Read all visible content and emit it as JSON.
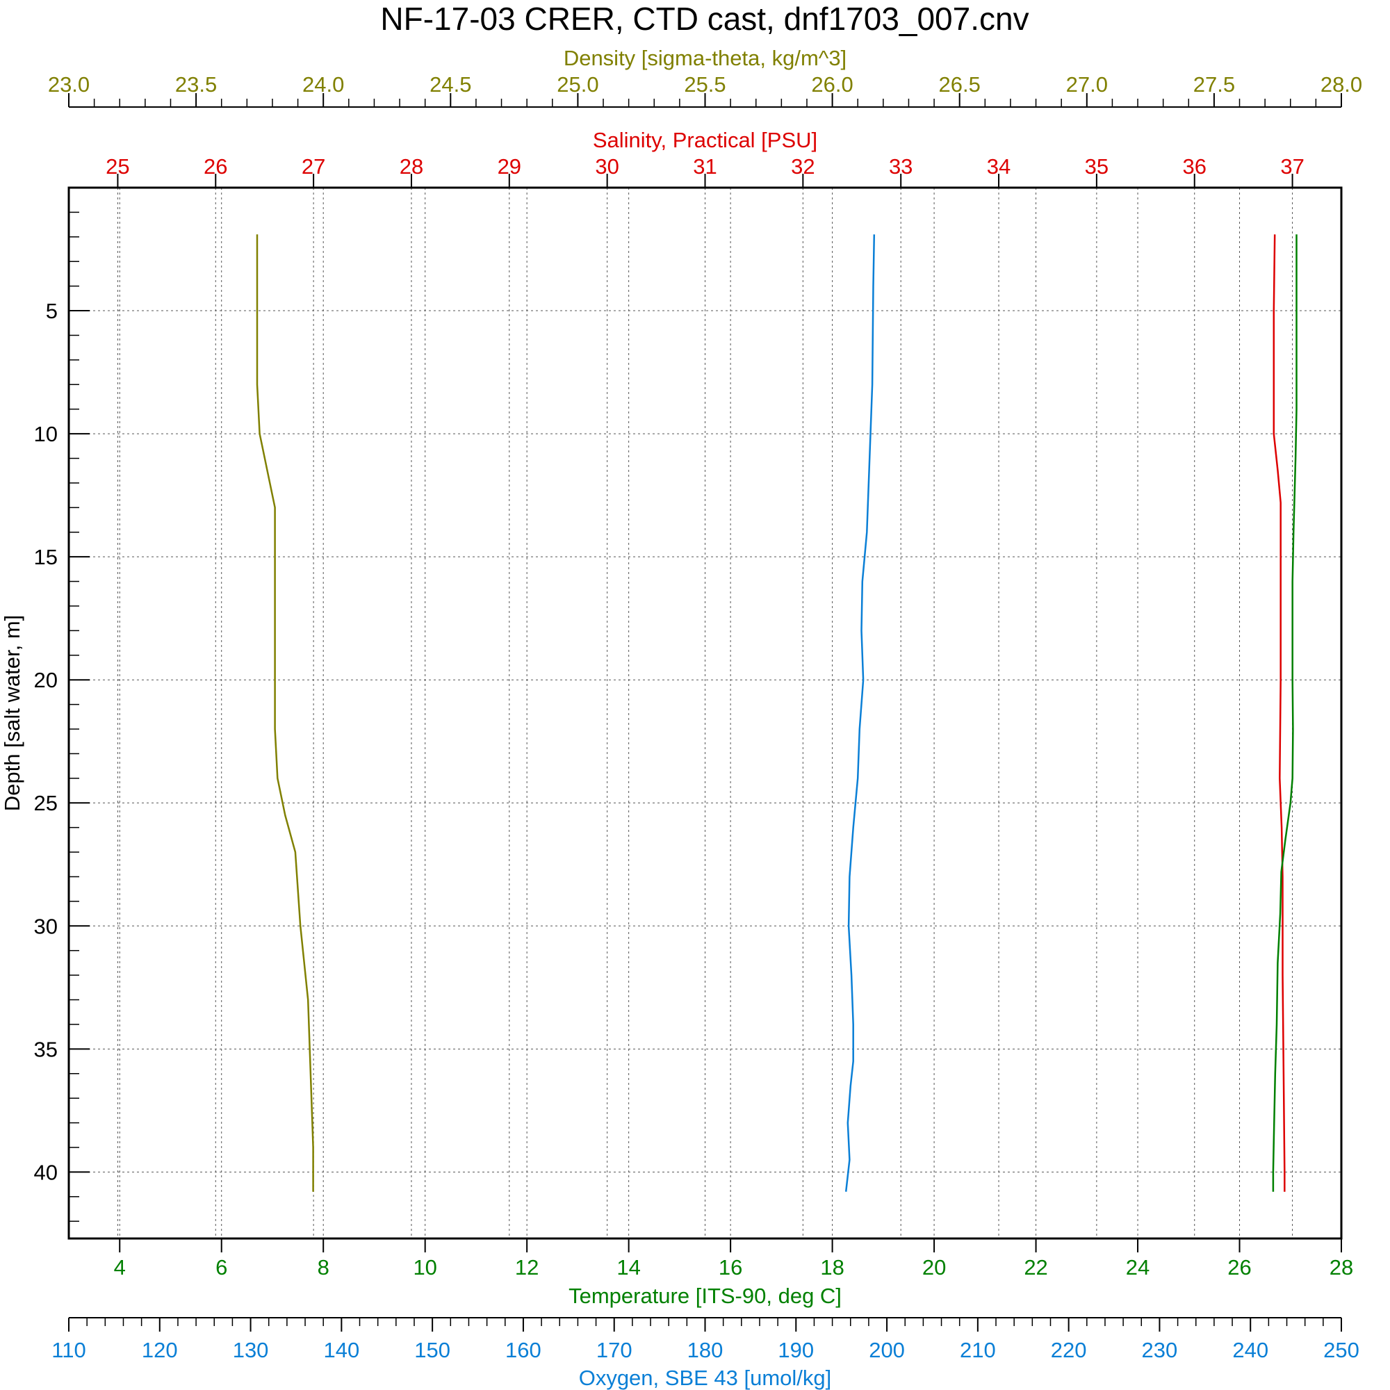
{
  "chart_data": {
    "type": "line",
    "title": "NF-17-03 CRER, CTD cast, dnf1703_007.cnv",
    "grid": true,
    "legend": "none",
    "y_axis": {
      "label": "Depth [salt water, m]",
      "range": [
        42.7,
        0.0
      ],
      "ticks": [
        5,
        10,
        15,
        20,
        25,
        30,
        35,
        40
      ],
      "tick_labels": [
        "5",
        "10",
        "15",
        "20",
        "25",
        "30",
        "35",
        "40"
      ],
      "inverted": true
    },
    "x_axes": [
      {
        "id": "density",
        "label": "Density [sigma-theta, kg/m^3]",
        "color": "#808000",
        "position": "top",
        "range": [
          23.0,
          28.0
        ],
        "ticks": [
          23.0,
          23.5,
          24.0,
          24.5,
          25.0,
          25.5,
          26.0,
          26.5,
          27.0,
          27.5,
          28.0
        ],
        "tick_labels": [
          "23.0",
          "23.5",
          "24.0",
          "24.5",
          "25.0",
          "25.5",
          "26.0",
          "26.5",
          "27.0",
          "27.5",
          "28.0"
        ],
        "minor_step": 0.1
      },
      {
        "id": "salinity",
        "label": "Salinity, Practical [PSU]",
        "color": "#dd0000",
        "position": "top",
        "range": [
          24.5,
          37.5
        ],
        "ticks": [
          25,
          26,
          27,
          28,
          29,
          30,
          31,
          32,
          33,
          34,
          35,
          36,
          37
        ],
        "tick_labels": [
          "25",
          "26",
          "27",
          "28",
          "29",
          "30",
          "31",
          "32",
          "33",
          "34",
          "35",
          "36",
          "37"
        ],
        "minor_step": 0
      },
      {
        "id": "temperature",
        "label": "Temperature [ITS-90, deg C]",
        "color": "#008000",
        "position": "bottom",
        "range": [
          3.0,
          28.0
        ],
        "ticks": [
          4,
          6,
          8,
          10,
          12,
          14,
          16,
          18,
          20,
          22,
          24,
          26,
          28
        ],
        "tick_labels": [
          "4",
          "6",
          "8",
          "10",
          "12",
          "14",
          "16",
          "18",
          "20",
          "22",
          "24",
          "26",
          "28"
        ],
        "minor_step": 0
      },
      {
        "id": "oxygen",
        "label": "Oxygen, SBE 43 [umol/kg]",
        "color": "#0a7fd6",
        "position": "bottom",
        "range": [
          110,
          250
        ],
        "ticks": [
          110,
          120,
          130,
          140,
          150,
          160,
          170,
          180,
          190,
          200,
          210,
          220,
          230,
          240,
          250
        ],
        "tick_labels": [
          "110",
          "120",
          "130",
          "140",
          "150",
          "160",
          "170",
          "180",
          "190",
          "200",
          "210",
          "220",
          "230",
          "240",
          "250"
        ],
        "minor_step": 2
      }
    ],
    "series": [
      {
        "axis": "density",
        "color": "#808000",
        "points": [
          [
            23.74,
            1.9
          ],
          [
            23.74,
            5
          ],
          [
            23.74,
            8
          ],
          [
            23.75,
            10
          ],
          [
            23.78,
            11.5
          ],
          [
            23.81,
            13
          ],
          [
            23.81,
            15
          ],
          [
            23.81,
            18
          ],
          [
            23.81,
            22
          ],
          [
            23.82,
            24
          ],
          [
            23.85,
            25.5
          ],
          [
            23.89,
            27
          ],
          [
            23.91,
            30
          ],
          [
            23.94,
            33
          ],
          [
            23.95,
            36
          ],
          [
            23.96,
            39
          ],
          [
            23.96,
            40
          ],
          [
            23.96,
            40.8
          ]
        ]
      },
      {
        "axis": "salinity",
        "color": "#dd0000",
        "points": [
          [
            36.82,
            1.9
          ],
          [
            36.81,
            5
          ],
          [
            36.81,
            8
          ],
          [
            36.81,
            10
          ],
          [
            36.85,
            11.5
          ],
          [
            36.88,
            12.8
          ],
          [
            36.88,
            15
          ],
          [
            36.88,
            20
          ],
          [
            36.87,
            24
          ],
          [
            36.89,
            26
          ],
          [
            36.9,
            28
          ],
          [
            36.9,
            32
          ],
          [
            36.91,
            36
          ],
          [
            36.92,
            40
          ],
          [
            36.92,
            40.8
          ]
        ]
      },
      {
        "axis": "temperature",
        "color": "#008000",
        "points": [
          [
            27.12,
            1.9
          ],
          [
            27.12,
            5
          ],
          [
            27.12,
            9
          ],
          [
            27.1,
            11
          ],
          [
            27.06,
            14
          ],
          [
            27.04,
            16
          ],
          [
            27.04,
            20
          ],
          [
            27.05,
            22
          ],
          [
            27.04,
            24
          ],
          [
            27.0,
            25
          ],
          [
            26.9,
            26.5
          ],
          [
            26.82,
            27.8
          ],
          [
            26.8,
            29.5
          ],
          [
            26.75,
            31.5
          ],
          [
            26.73,
            34
          ],
          [
            26.7,
            36
          ],
          [
            26.68,
            38
          ],
          [
            26.66,
            40
          ],
          [
            26.66,
            40.8
          ]
        ]
      },
      {
        "axis": "oxygen",
        "color": "#0a7fd6",
        "points": [
          [
            198.6,
            1.9
          ],
          [
            198.5,
            4
          ],
          [
            198.4,
            8
          ],
          [
            198.2,
            10
          ],
          [
            197.8,
            14
          ],
          [
            197.3,
            16
          ],
          [
            197.2,
            18
          ],
          [
            197.4,
            20
          ],
          [
            197.0,
            22
          ],
          [
            196.8,
            24
          ],
          [
            196.3,
            26
          ],
          [
            195.9,
            28
          ],
          [
            195.8,
            30
          ],
          [
            196.1,
            32
          ],
          [
            196.3,
            34
          ],
          [
            196.3,
            35.5
          ],
          [
            196.0,
            36.5
          ],
          [
            195.7,
            38
          ],
          [
            195.9,
            39.5
          ],
          [
            195.5,
            40.8
          ]
        ]
      }
    ]
  }
}
